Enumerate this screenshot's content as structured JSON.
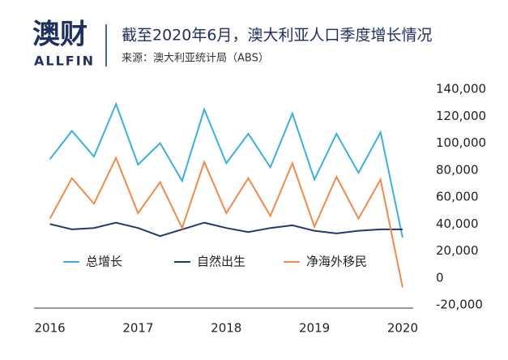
{
  "logo": {
    "name": "澳财",
    "sub": "ALLFIN"
  },
  "chart_data": {
    "type": "line",
    "title": "截至2020年6月，澳大利亚人口季度增长情况",
    "subtitle": "来源：澳大利亚统计局（ABS）",
    "x": [
      2016,
      2016.25,
      2016.5,
      2016.75,
      2017,
      2017.25,
      2017.5,
      2017.75,
      2018,
      2018.25,
      2018.5,
      2018.75,
      2019,
      2019.25,
      2019.5,
      2019.75,
      2020
    ],
    "series": [
      {
        "name": "总增长",
        "color": "#3bb0dc",
        "values": [
          88000,
          109000,
          90000,
          129000,
          84000,
          100000,
          72000,
          125000,
          85000,
          107000,
          82000,
          122000,
          73000,
          107000,
          78000,
          108000,
          30000
        ]
      },
      {
        "name": "自然出生",
        "color": "#1f3a6e",
        "values": [
          40000,
          36000,
          37000,
          41000,
          37000,
          31000,
          36000,
          41000,
          37000,
          34000,
          37000,
          39000,
          35000,
          33000,
          35000,
          36000,
          36000
        ]
      },
      {
        "name": "净海外移民",
        "color": "#ef8a4a",
        "values": [
          44000,
          74000,
          55000,
          89000,
          48000,
          71000,
          37000,
          86000,
          48000,
          74000,
          46000,
          85000,
          38000,
          75000,
          44000,
          73000,
          -7000
        ]
      }
    ],
    "xlim": [
      2015.82,
      2020.12
    ],
    "xticks": [
      2016,
      2017,
      2018,
      2019,
      2020
    ],
    "ylim": [
      -20000,
      140000
    ],
    "yticks": [
      {
        "value": -20000,
        "label": "-20,000"
      },
      0,
      {
        "value": 20000,
        "label": "20,000"
      },
      {
        "value": 40000,
        "label": "40,000"
      },
      {
        "value": 60000,
        "label": "60,000"
      },
      {
        "value": 80000,
        "label": "80,000"
      },
      {
        "value": 100000,
        "label": "100,000"
      },
      {
        "value": 120000,
        "label": "120,000"
      },
      {
        "value": 140000,
        "label": "140,000"
      }
    ],
    "grid": false,
    "legend": "lower center"
  }
}
